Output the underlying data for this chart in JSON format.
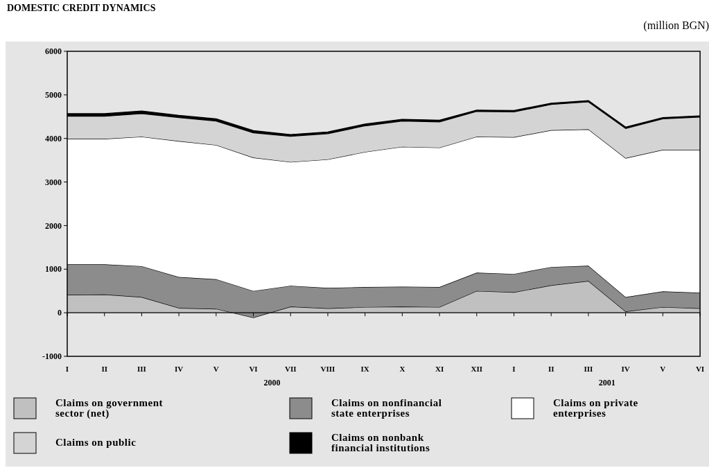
{
  "chart_data": {
    "type": "area",
    "stacked": true,
    "title": "DOMESTIC CREDIT DYNAMICS",
    "ylabel": "(million BGN)",
    "categories": [
      "I",
      "II",
      "III",
      "IV",
      "V",
      "VI",
      "VII",
      "VIII",
      "IX",
      "X",
      "XI",
      "XII",
      "I",
      "II",
      "III",
      "IV",
      "V",
      "VI"
    ],
    "annotations": [
      "2000",
      "2001"
    ],
    "series": [
      {
        "name": "Claims on government sector (net)",
        "color": "#c0c0c0",
        "values": [
          410,
          420,
          360,
          110,
          90,
          -110,
          140,
          100,
          130,
          140,
          130,
          500,
          470,
          630,
          730,
          30,
          130,
          100
        ]
      },
      {
        "name": "Claims on nonfinancial state enterprises",
        "color": "#8c8c8c",
        "values": [
          700,
          690,
          710,
          710,
          680,
          610,
          480,
          470,
          460,
          460,
          460,
          420,
          420,
          420,
          350,
          330,
          360,
          360
        ]
      },
      {
        "name": "Claims on private enterprises",
        "color": "#ffffff",
        "values": [
          2880,
          2880,
          2970,
          3120,
          3080,
          3060,
          2840,
          2950,
          3100,
          3210,
          3200,
          3120,
          3140,
          3140,
          3130,
          3190,
          3250,
          3280
        ]
      },
      {
        "name": "Claims on public",
        "color": "#d4d4d4",
        "values": [
          520,
          520,
          530,
          540,
          550,
          570,
          590,
          590,
          600,
          590,
          590,
          580,
          580,
          590,
          630,
          680,
          710,
          750
        ]
      },
      {
        "name": "Claims on nonbank financial institutions",
        "color": "#000000",
        "values": [
          60,
          60,
          60,
          50,
          50,
          50,
          40,
          40,
          40,
          40,
          40,
          30,
          30,
          30,
          30,
          30,
          30,
          30
        ]
      }
    ],
    "ylim": [
      -1000,
      6000
    ],
    "yticks": [
      -1000,
      0,
      1000,
      2000,
      3000,
      4000,
      5000,
      6000
    ],
    "legend": "bottom"
  }
}
